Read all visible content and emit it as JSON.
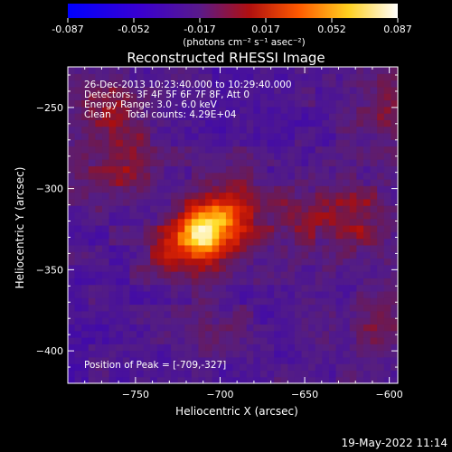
{
  "colorbar": {
    "ticks": [
      "-0.087",
      "-0.052",
      "-0.017",
      "0.017",
      "0.052",
      "0.087"
    ],
    "label": "(photons cm⁻² s⁻¹ asec⁻²)",
    "colors": [
      "#0000ff",
      "#4a00c8",
      "#5a1a8a",
      "#b01010",
      "#ff7a00",
      "#ffff40",
      "#ffffff"
    ]
  },
  "chart_data": {
    "type": "heatmap",
    "title": "Reconstructed RHESSI Image",
    "xlabel": "Heliocentric X (arcsec)",
    "ylabel": "Heliocentric Y (arcsec)",
    "xlim": [
      -790,
      -595
    ],
    "ylim": [
      -420,
      -225
    ],
    "x_ticks": [
      -750,
      -700,
      -650,
      -600
    ],
    "y_ticks": [
      -250,
      -300,
      -350,
      -400
    ],
    "value_range": [
      -0.087,
      0.087
    ],
    "annotations": [
      "26-Dec-2013 10:23:40.000 to 10:29:40.000",
      "Detectors: 3F 4F 5F 6F 7F 8F, Att 0",
      "Energy Range: 3.0 - 6.0 keV",
      "Clean     Total counts: 4.29E+04"
    ],
    "peak_label": "Position of Peak = [-709,-327]",
    "peak": {
      "x": -709,
      "y": -327
    },
    "sources": [
      {
        "x": -709,
        "y": -327,
        "amplitude": 0.085,
        "sigma": 12
      },
      {
        "x": -690,
        "y": -312,
        "amplitude": 0.035,
        "sigma": 16
      },
      {
        "x": -728,
        "y": -340,
        "amplitude": 0.03,
        "sigma": 14
      },
      {
        "x": -760,
        "y": -283,
        "amplitude": 0.025,
        "sigma": 18
      },
      {
        "x": -770,
        "y": -245,
        "amplitude": 0.022,
        "sigma": 15
      },
      {
        "x": -620,
        "y": -318,
        "amplitude": 0.03,
        "sigma": 14
      },
      {
        "x": -650,
        "y": -318,
        "amplitude": 0.024,
        "sigma": 12
      },
      {
        "x": -605,
        "y": -250,
        "amplitude": 0.02,
        "sigma": 18
      },
      {
        "x": -605,
        "y": -380,
        "amplitude": 0.022,
        "sigma": 16
      },
      {
        "x": -700,
        "y": -385,
        "amplitude": 0.015,
        "sigma": 12
      }
    ]
  },
  "timestamp": "19-May-2022 11:14"
}
